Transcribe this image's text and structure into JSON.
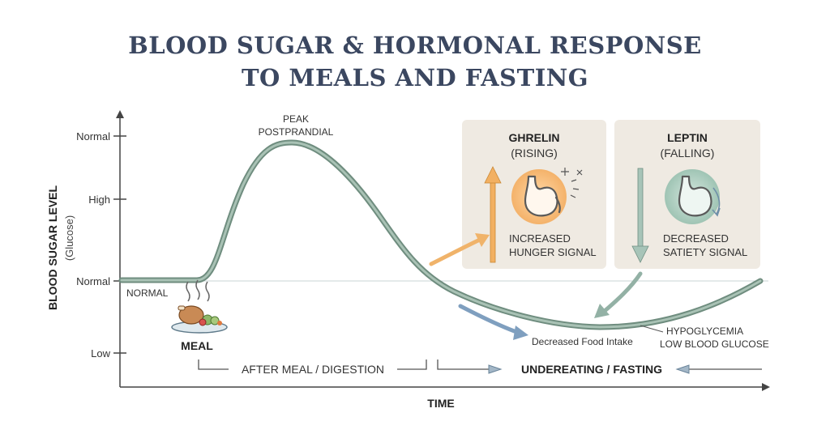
{
  "title": {
    "line1": "BLOOD SUGAR & HORMONAL RESPONSE",
    "line2": "TO MEALS AND FASTING"
  },
  "y_axis": {
    "title": "BLOOD SUGAR LEVEL",
    "subtitle": "(Glucose)",
    "ticks": [
      "Normal",
      "High",
      "Normal",
      "Low"
    ]
  },
  "x_axis": {
    "title": "TIME"
  },
  "curve_labels": {
    "peak_line1": "PEAK",
    "peak_line2": "POSTPRANDIAL",
    "normal": "NORMAL",
    "meal": "MEAL",
    "decreased_food_intake": "Decreased Food Intake",
    "hypo_line1": "HYPOGLYCEMIA",
    "hypo_line2": "LOW BLOOD GLUCOSE"
  },
  "phases": {
    "after_meal": "AFTER MEAL / DIGESTION",
    "fasting": "UNDEREATING / FASTING"
  },
  "ghrelin": {
    "title": "GHRELIN",
    "status": "(RISING)",
    "line1": "INCREASED",
    "line2": "HUNGER SIGNAL",
    "icon": "stomach-icon"
  },
  "leptin": {
    "title": "LEPTIN",
    "status": "(FALLING)",
    "line1": "DECREASED",
    "line2": "SATIETY SIGNAL",
    "icon": "stomach-icon"
  },
  "colors": {
    "curve": "#7f9a8a",
    "ghrelin_accent": "#f2a65a",
    "leptin_accent": "#7fa898",
    "panel_bg": "#efeae2",
    "title": "#3b4760"
  }
}
